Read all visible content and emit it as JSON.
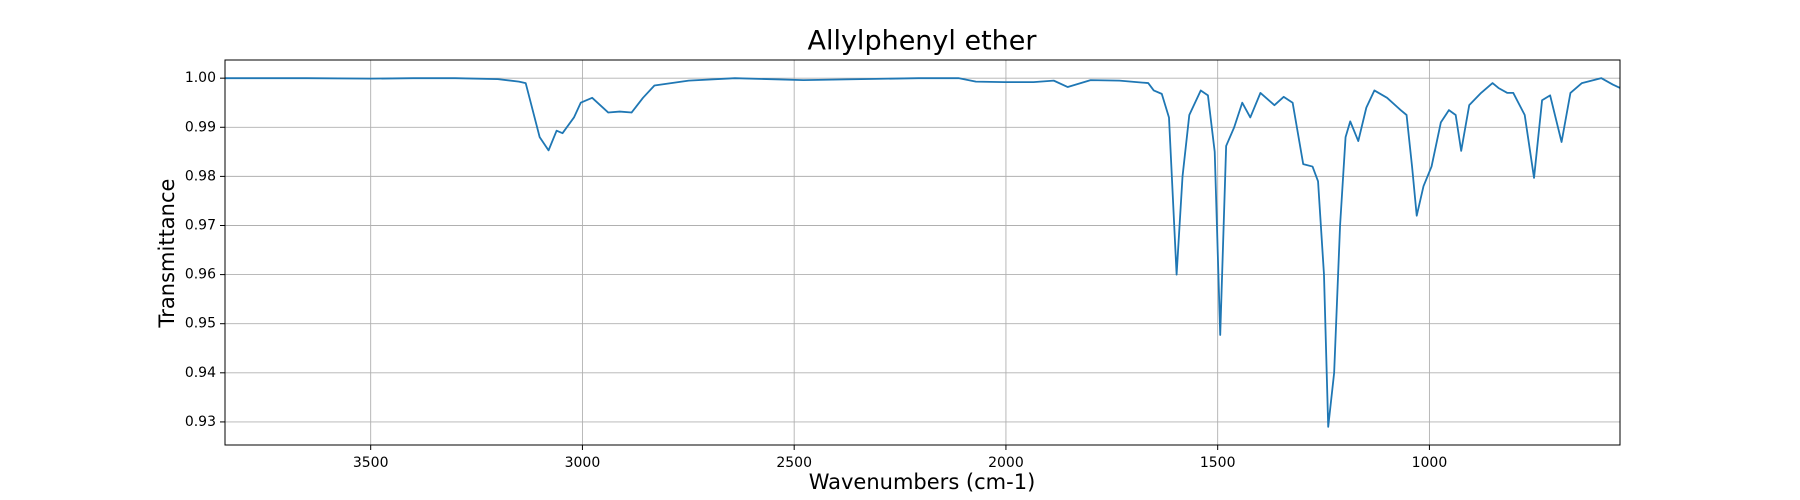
{
  "chart_data": {
    "type": "line",
    "title": "Allylphenyl ether",
    "x_label": "Wavenumbers (cm-1)",
    "y_label": "Transmittance",
    "color": "#1f77b4",
    "grid": true,
    "xlim": [
      3844,
      550
    ],
    "ylim": [
      0.9253,
      1.0037
    ],
    "xticks": [
      3500,
      3000,
      2500,
      2000,
      1500,
      1000
    ],
    "yticks": [
      0.93,
      0.94,
      0.95,
      0.96,
      0.97,
      0.98,
      0.99,
      {
        "value": 1,
        "label": "1.00"
      }
    ],
    "x": [
      3844,
      3750,
      3650,
      3500,
      3400,
      3300,
      3200,
      3150,
      3134,
      3101,
      3080,
      3061,
      3047,
      3020,
      3004,
      2977,
      2939,
      2912,
      2884,
      2857,
      2830,
      2749,
      2640,
      2478,
      2207,
      2112,
      2071,
      2003,
      1935,
      1887,
      1854,
      1800,
      1732,
      1664,
      1651,
      1632,
      1615,
      1597,
      1583,
      1567,
      1540,
      1523,
      1507,
      1494,
      1480,
      1461,
      1442,
      1423,
      1399,
      1366,
      1344,
      1323,
      1298,
      1276,
      1263,
      1249,
      1239,
      1225,
      1211,
      1198,
      1187,
      1168,
      1149,
      1130,
      1100,
      1068,
      1054,
      1041,
      1030,
      1014,
      995,
      973,
      954,
      938,
      925,
      906,
      878,
      851,
      837,
      816,
      802,
      775,
      753,
      734,
      715,
      688,
      667,
      640,
      594,
      567,
      550
    ],
    "values": [
      1.0,
      1.0,
      1.0,
      0.9999,
      1.0,
      1.0,
      0.9998,
      0.9993,
      0.999,
      0.988,
      0.9853,
      0.9893,
      0.9888,
      0.992,
      0.995,
      0.996,
      0.993,
      0.9932,
      0.993,
      0.996,
      0.9985,
      0.9995,
      1.0,
      0.9996,
      1.0,
      1.0,
      0.9993,
      0.9992,
      0.9992,
      0.9995,
      0.9982,
      0.9996,
      0.9995,
      0.999,
      0.9975,
      0.9968,
      0.992,
      0.96,
      0.98,
      0.9925,
      0.9975,
      0.9965,
      0.985,
      0.9477,
      0.9862,
      0.99,
      0.995,
      0.992,
      0.997,
      0.9945,
      0.9962,
      0.995,
      0.9825,
      0.982,
      0.979,
      0.96,
      0.929,
      0.94,
      0.97,
      0.988,
      0.9912,
      0.9872,
      0.994,
      0.9975,
      0.996,
      0.9935,
      0.9925,
      0.982,
      0.972,
      0.978,
      0.982,
      0.991,
      0.9935,
      0.9925,
      0.9852,
      0.9945,
      0.997,
      0.999,
      0.998,
      0.997,
      0.997,
      0.9925,
      0.9797,
      0.9955,
      0.9965,
      0.987,
      0.997,
      0.999,
      1.0,
      0.9987,
      0.998
    ]
  }
}
